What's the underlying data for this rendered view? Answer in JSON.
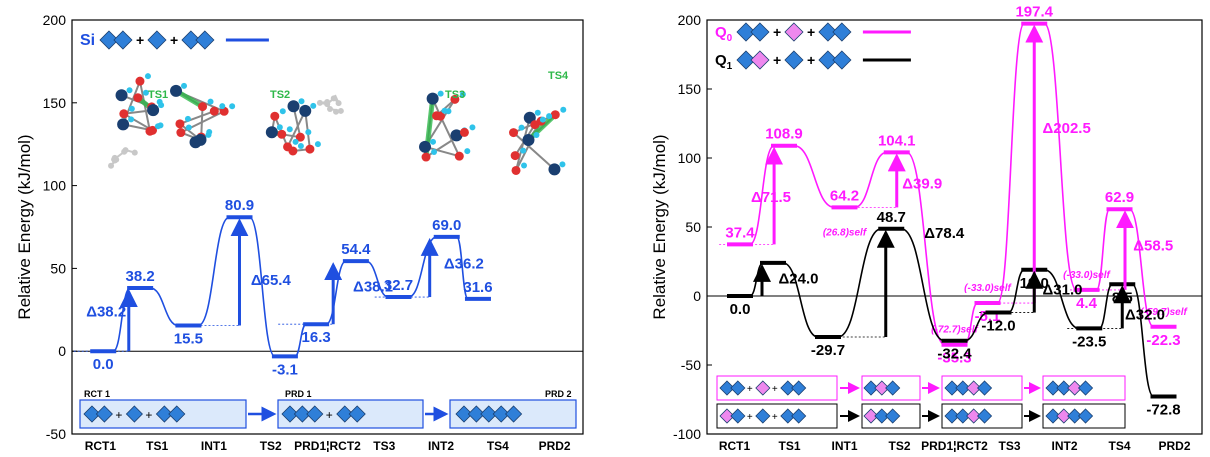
{
  "colors": {
    "si": "#1f4fe0",
    "q0": "#ff1aff",
    "q1": "#000000",
    "diamond_blue": "#2f7fd8",
    "diamond_pink": "#ee88ee",
    "ts_green": "#2fb84a",
    "atom_red": "#e03030",
    "atom_navy": "#1a3f70",
    "atom_cyan": "#2fc3ea",
    "atom_gray": "#c8c8c8"
  },
  "chart_data": [
    {
      "type": "line",
      "ylabel": "Relative Energy (kJ/mol)",
      "ylim": [
        -50,
        200
      ],
      "yticks": [
        -50,
        0,
        50,
        100,
        150,
        200
      ],
      "categories": [
        "RCT1",
        "TS1",
        "INT1",
        "TS2",
        "PRD1¦RCT2",
        "TS3",
        "INT2",
        "TS4",
        "PRD2"
      ],
      "series": [
        {
          "name": "Si",
          "color": "#1f4fe0",
          "points": [
            {
              "x": 0.55,
              "y": 0.0,
              "label": "0.0"
            },
            {
              "x": 1.2,
              "y": 38.2,
              "label": "38.2"
            },
            {
              "x": 2.05,
              "y": 15.5,
              "label": "15.5"
            },
            {
              "x": 2.95,
              "y": 80.9,
              "label": "80.9"
            },
            {
              "x": 3.75,
              "y": -3.1,
              "label": "-3.1"
            },
            {
              "x": 4.3,
              "y": 16.3,
              "label": "16.3"
            },
            {
              "x": 5.0,
              "y": 54.4,
              "label": "54.4"
            },
            {
              "x": 5.75,
              "y": 32.7,
              "label": "32.7"
            },
            {
              "x": 6.6,
              "y": 69.0,
              "label": "69.0"
            },
            {
              "x": 7.15,
              "y": 31.6,
              "label": "31.6"
            }
          ]
        }
      ],
      "barriers": [
        {
          "x": 1.0,
          "y0": 0.0,
          "y1": 38.2,
          "label": "Δ38.2",
          "lx": 0.25,
          "ly": 21
        },
        {
          "x": 2.95,
          "y0": 15.5,
          "y1": 80.9,
          "label": "Δ65.4",
          "lx": 3.15,
          "ly": 40
        },
        {
          "x": 4.6,
          "y0": 16.3,
          "y1": 54.4,
          "label": "Δ38.1",
          "lx": 4.95,
          "ly": 36
        },
        {
          "x": 6.3,
          "y0": 32.7,
          "y1": 69.0,
          "label": "Δ36.2",
          "lx": 6.55,
          "ly": 50
        }
      ],
      "legend": {
        "label": "Si"
      },
      "ts_labels": [
        "TS1",
        "TS2",
        "TS3",
        "TS4"
      ],
      "scheme_labels": [
        "RCT 1",
        "PRD 1",
        "PRD 2"
      ]
    },
    {
      "type": "line",
      "ylabel": "Relative Energy (kJ/mol)",
      "ylim": [
        -100,
        200
      ],
      "yticks": [
        -100,
        -50,
        0,
        50,
        100,
        150,
        200
      ],
      "categories": [
        "RCT1",
        "TS1",
        "INT1",
        "TS2",
        "PRD1¦RCT2",
        "TS3",
        "INT2",
        "TS4",
        "PRD2"
      ],
      "series": [
        {
          "name": "Q0",
          "color": "#ff1aff",
          "points": [
            {
              "x": 0.6,
              "y": 37.4,
              "label": "37.4"
            },
            {
              "x": 1.4,
              "y": 108.9,
              "label": "108.9"
            },
            {
              "x": 2.5,
              "y": 64.2,
              "label": "64.2",
              "sub": "(26.8)self"
            },
            {
              "x": 3.45,
              "y": 104.1,
              "label": "104.1"
            },
            {
              "x": 4.5,
              "y": -35.3,
              "label": "-35.3",
              "sub": "(-72.7)self"
            },
            {
              "x": 5.1,
              "y": -5.1,
              "label": "-5.1",
              "sub": "(-33.0)self"
            },
            {
              "x": 5.95,
              "y": 197.4,
              "label": "197.4"
            },
            {
              "x": 6.9,
              "y": 4.4,
              "label": "4.4",
              "sub": "(-33.0)self"
            },
            {
              "x": 7.5,
              "y": 62.9,
              "label": "62.9"
            },
            {
              "x": 8.3,
              "y": -22.3,
              "label": "-22.3",
              "sub": "(-59.7)self"
            }
          ]
        },
        {
          "name": "Q1",
          "color": "#000000",
          "points": [
            {
              "x": 0.6,
              "y": 0.0,
              "label": "0.0"
            },
            {
              "x": 1.2,
              "y": 24.0,
              "label": ""
            },
            {
              "x": 2.2,
              "y": -29.7,
              "label": "-29.7"
            },
            {
              "x": 3.35,
              "y": 48.7,
              "label": "48.7"
            },
            {
              "x": 4.5,
              "y": -32.4,
              "label": "-32.4"
            },
            {
              "x": 5.3,
              "y": -12.0,
              "label": "-12.0"
            },
            {
              "x": 5.95,
              "y": 19.0,
              "label": "19.0"
            },
            {
              "x": 6.95,
              "y": -23.5,
              "label": "-23.5"
            },
            {
              "x": 7.55,
              "y": 8.5,
              "label": "8.5"
            },
            {
              "x": 8.3,
              "y": -72.8,
              "label": "-72.8"
            }
          ]
        }
      ],
      "barriers": [
        {
          "x": 1.22,
          "y0": 37.4,
          "y1": 108.9,
          "label": "Δ71.5",
          "lx": 0.8,
          "ly": 68,
          "color": "#ff1aff"
        },
        {
          "x": 3.45,
          "y0": 64.2,
          "y1": 104.1,
          "label": "Δ39.9",
          "lx": 3.55,
          "ly": 78,
          "color": "#ff1aff"
        },
        {
          "x": 5.95,
          "y0": -5.1,
          "y1": 197.4,
          "label": "Δ202.5",
          "lx": 6.1,
          "ly": 118,
          "color": "#ff1aff"
        },
        {
          "x": 7.6,
          "y0": 4.4,
          "y1": 62.9,
          "label": "Δ58.5",
          "lx": 7.75,
          "ly": 33,
          "color": "#ff1aff"
        },
        {
          "x": 1.0,
          "y0": 0.0,
          "y1": 24.0,
          "label": "Δ24.0",
          "lx": 1.3,
          "ly": 9,
          "color": "#000000"
        },
        {
          "x": 3.25,
          "y0": -29.7,
          "y1": 48.7,
          "label": "Δ78.4",
          "lx": 3.95,
          "ly": 42,
          "color": "#000000"
        },
        {
          "x": 5.95,
          "y0": -12.0,
          "y1": 19.0,
          "label": "Δ31.0",
          "lx": 6.1,
          "ly": 1,
          "color": "#000000"
        },
        {
          "x": 7.55,
          "y0": -23.5,
          "y1": 8.5,
          "label": "Δ32.0",
          "lx": 7.6,
          "ly": -17,
          "color": "#000000"
        }
      ],
      "legend": {
        "q0_sym": "Q",
        "q0_sub": "0",
        "q1_sym": "Q",
        "q1_sub": "1"
      }
    }
  ]
}
